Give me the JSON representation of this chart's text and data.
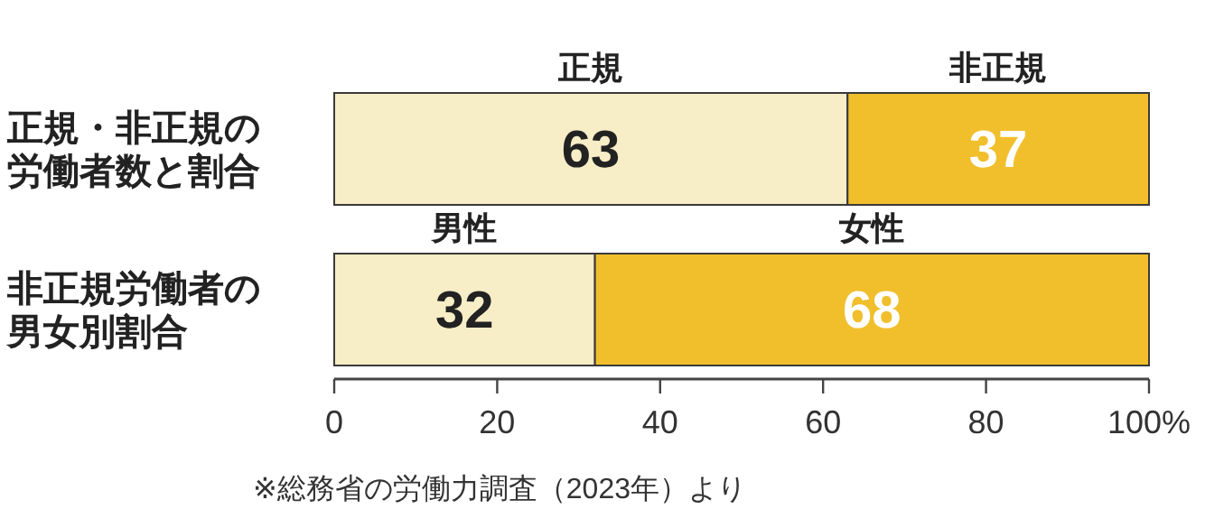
{
  "chart_data": {
    "type": "bar",
    "orientation": "horizontal",
    "stacked": true,
    "data_labels": true,
    "categories": [
      "正規・非正規の労働者数と割合",
      "非正規労働者の男女別割合"
    ],
    "series": [
      {
        "color": "#f7edc6",
        "values": [
          63,
          32
        ]
      },
      {
        "color": "#f1bf2c",
        "values": [
          37,
          68
        ]
      }
    ],
    "xlim": [
      0,
      100
    ],
    "xticks": [
      0,
      20,
      40,
      60,
      80,
      {
        "value": 100,
        "label": "100%"
      }
    ],
    "annotations": [
      "正規",
      "非正規",
      "男性",
      "女性",
      "※総務省の労働力調査（2023年）より"
    ]
  }
}
